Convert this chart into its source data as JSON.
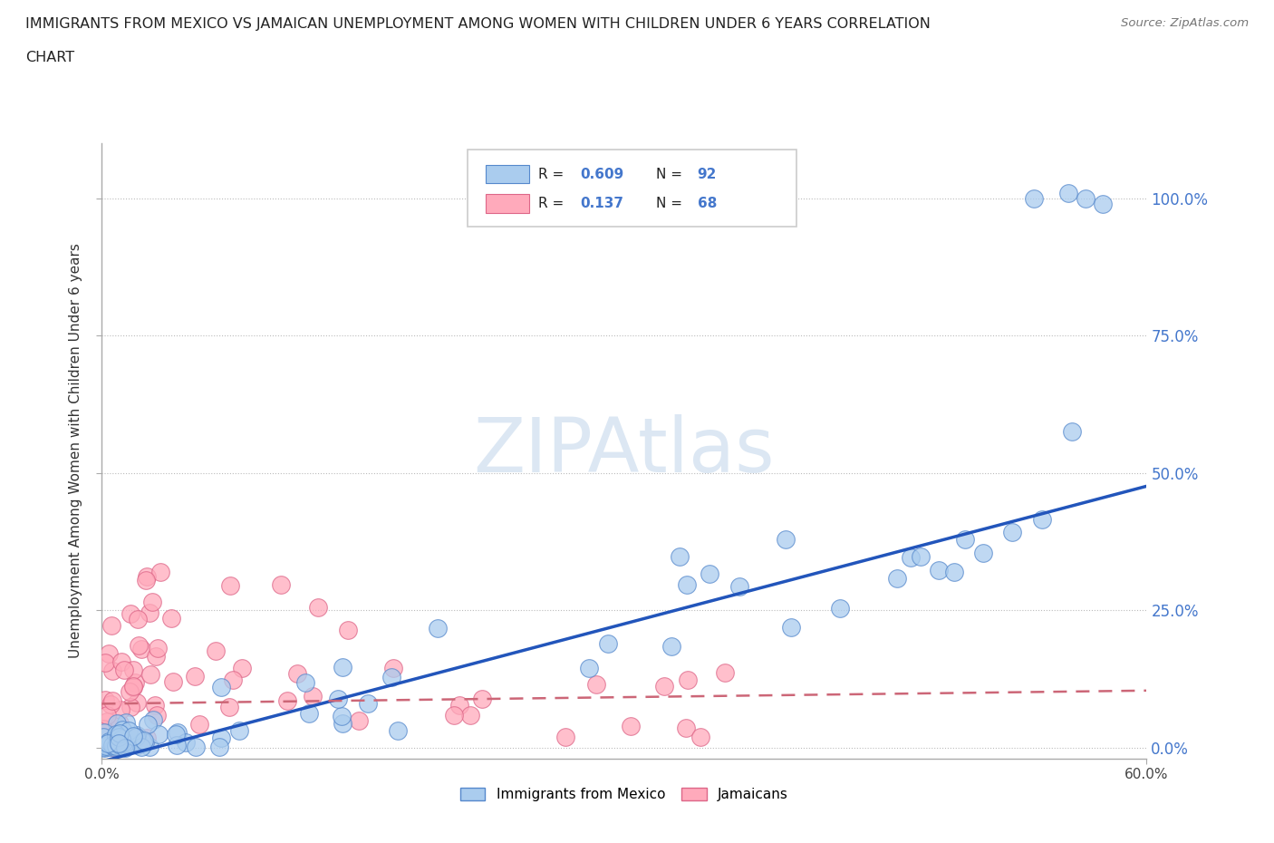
{
  "title_line1": "IMMIGRANTS FROM MEXICO VS JAMAICAN UNEMPLOYMENT AMONG WOMEN WITH CHILDREN UNDER 6 YEARS CORRELATION",
  "title_line2": "CHART",
  "source": "Source: ZipAtlas.com",
  "ylabel": "Unemployment Among Women with Children Under 6 years",
  "xlim": [
    0.0,
    0.6
  ],
  "ylim": [
    -0.02,
    1.1
  ],
  "legend_R1": "0.609",
  "legend_N1": "92",
  "legend_R2": "0.137",
  "legend_N2": "68",
  "series1_color": "#AACCEE",
  "series1_edge": "#5588CC",
  "series2_color": "#FFAABB",
  "series2_edge": "#DD6688",
  "trendline1_color": "#2255BB",
  "trendline2_color": "#CC6677",
  "trendline1_slope": 0.835,
  "trendline1_intercept": -0.025,
  "trendline2_slope": 0.04,
  "trendline2_intercept": 0.08,
  "watermark": "ZIPAtlas",
  "watermark_color": "#C5D8EC",
  "background_color": "#FFFFFF",
  "grid_color": "#BBBBBB",
  "ytick_color": "#4477CC",
  "axis_label_color": "#333333",
  "right_yticks": [
    0.0,
    0.25,
    0.5,
    0.75,
    1.0
  ],
  "right_yticklabels": [
    "0.0%",
    "25.0%",
    "50.0%",
    "75.0%",
    "100.0%"
  ],
  "xticklabels_left": "0.0%",
  "xticklabels_right": "60.0%"
}
